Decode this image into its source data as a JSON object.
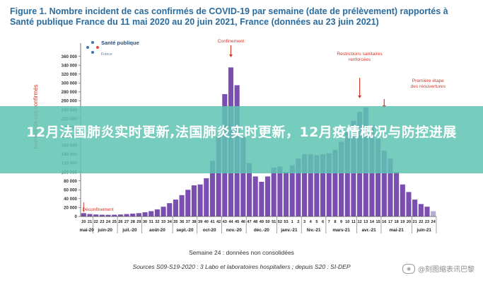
{
  "figure": {
    "title": "Figure 1. Nombre incident de cas confirmés de COVID-19 par semaine (date de prélèvement) rapportés à Santé publique France du 11 mai 2020 au 20 juin 2021, France (données au 23 juin 2021)"
  },
  "logo": {
    "name": "Santé publique",
    "country": "France",
    "dot_color": "#3a78b5"
  },
  "overlay": {
    "headline": "12月法国肺炎实时更新,法国肺炎实时更新，12月疫情概况与防控进展",
    "color": "#60c4b2"
  },
  "notes": {
    "week24": "Semaine 24 : données non consolidées",
    "sources": "Sources S09-S19-2020 : 3 Labo et laboratoires hospitaliers ; depuis S20 : SI-DEP"
  },
  "watermark": {
    "text": "@刻图缩表讯巴黎"
  },
  "chart_data": {
    "type": "bar",
    "title": "",
    "ylabel": "Nombre de cas confirmés",
    "xlabel": "",
    "ylim": [
      0,
      380000
    ],
    "yticks": [
      0,
      20000,
      40000,
      60000,
      80000,
      100000,
      120000,
      140000,
      160000,
      180000,
      200000,
      220000,
      240000,
      260000,
      280000,
      300000,
      320000,
      340000,
      360000
    ],
    "ytick_labels": [
      "0",
      "20 000",
      "40 000",
      "60 000",
      "80 000",
      "100 000",
      "120 000",
      "140 000",
      "160 000",
      "180 000",
      "200 000",
      "220 000",
      "240 000",
      "260 000",
      "280 000",
      "300 000",
      "320 000",
      "340 000",
      "360 000"
    ],
    "grid": false,
    "bar_color": "#7b4fb0",
    "last_bar_color": "#b9aed3",
    "week_labels": [
      "20",
      "21",
      "22",
      "23",
      "24",
      "25",
      "26",
      "27",
      "28",
      "29",
      "30",
      "31",
      "32",
      "33",
      "34",
      "35",
      "36",
      "37",
      "38",
      "39",
      "40",
      "41",
      "42",
      "43",
      "44",
      "45",
      "46",
      "47",
      "48",
      "49",
      "50",
      "51",
      "52",
      "53",
      "1",
      "2",
      "3",
      "4",
      "5",
      "6",
      "7",
      "8",
      "9",
      "10",
      "11",
      "12",
      "13",
      "14",
      "15",
      "16",
      "17",
      "18",
      "19",
      "20",
      "21",
      "22",
      "23",
      "24"
    ],
    "values": [
      7500,
      5500,
      4500,
      4000,
      3800,
      4000,
      4500,
      5500,
      6500,
      7500,
      9500,
      12000,
      16000,
      22000,
      30000,
      38000,
      48000,
      60000,
      70000,
      72000,
      86000,
      125000,
      180000,
      275000,
      335000,
      295000,
      180000,
      120000,
      90000,
      78000,
      90000,
      110000,
      112000,
      100000,
      115000,
      130000,
      140000,
      140000,
      138000,
      140000,
      142000,
      150000,
      168000,
      190000,
      215000,
      235000,
      245000,
      205000,
      175000,
      148000,
      130000,
      100000,
      72000,
      55000,
      38000,
      28000,
      22000,
      12000
    ],
    "months": [
      {
        "label": "mai-20",
        "start": 0,
        "end": 1
      },
      {
        "label": "juin-20",
        "start": 2,
        "end": 5
      },
      {
        "label": "juil.-20",
        "start": 6,
        "end": 9
      },
      {
        "label": "août-20",
        "start": 10,
        "end": 14
      },
      {
        "label": "sept.-20",
        "start": 15,
        "end": 18
      },
      {
        "label": "oct-20",
        "start": 19,
        "end": 22
      },
      {
        "label": "nov.-20",
        "start": 23,
        "end": 26
      },
      {
        "label": "déc.-20",
        "start": 27,
        "end": 31
      },
      {
        "label": "janv.-21",
        "start": 32,
        "end": 35
      },
      {
        "label": "fév.-21",
        "start": 36,
        "end": 39
      },
      {
        "label": "mars-21",
        "start": 40,
        "end": 44
      },
      {
        "label": "avr.-21",
        "start": 45,
        "end": 48
      },
      {
        "label": "mai-21",
        "start": 49,
        "end": 53
      },
      {
        "label": "juin-21",
        "start": 54,
        "end": 57
      }
    ],
    "annotations": [
      {
        "text": "Déconfinement",
        "week_index": 0,
        "color": "#d23a2a"
      },
      {
        "text": "Confinement",
        "week_index": 24,
        "color": "#d23a2a"
      },
      {
        "text": "Restrictions sanitaires renforcées",
        "week_index": 45,
        "color": "#d23a2a"
      },
      {
        "text": "Première étape des réouvertures",
        "week_index": 49,
        "color": "#d23a2a"
      }
    ]
  }
}
